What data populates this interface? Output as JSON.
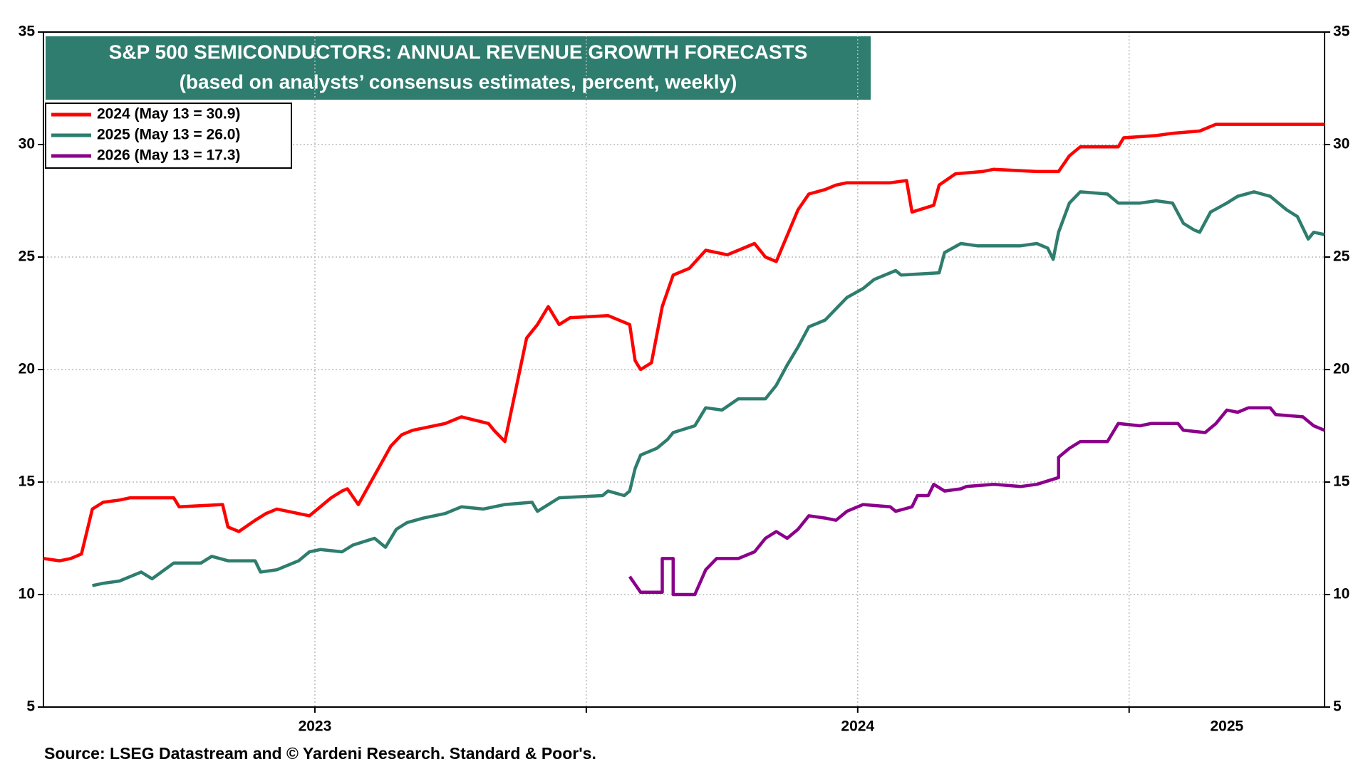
{
  "chart_data": {
    "type": "line",
    "title": "S&P 500 SEMICONDUCTORS: ANNUAL REVENUE GROWTH FORECASTS",
    "subtitle": "(based on analysts’ consensus estimates, percent, weekly)",
    "source": "Source: LSEG Datastream and © Yardeni Research. Standard & Poor's.",
    "xlim": [
      2023.0,
      2025.36
    ],
    "xticks": [
      {
        "value": 2023.5,
        "label": "2023"
      },
      {
        "value": 2024.5,
        "label": "2024"
      },
      {
        "value": 2025.18,
        "label": "2025"
      }
    ],
    "xgrid": [
      2023.5,
      2024,
      2024.5,
      2025
    ],
    "ylim": [
      5,
      35
    ],
    "yticks": [
      5,
      10,
      15,
      20,
      25,
      30,
      35
    ],
    "y2lim": [
      5,
      35
    ],
    "y2ticks": [
      5,
      10,
      15,
      20,
      25,
      30,
      35
    ],
    "grid": true,
    "legend": "upper left",
    "series": [
      {
        "name": "2024 (May 13 = 30.9)",
        "color": "#ff0000",
        "x": [
          2023.0,
          2023.03,
          2023.05,
          2023.07,
          2023.09,
          2023.11,
          2023.14,
          2023.16,
          2023.24,
          2023.25,
          2023.33,
          2023.34,
          2023.36,
          2023.39,
          2023.41,
          2023.43,
          2023.49,
          2023.53,
          2023.55,
          2023.56,
          2023.58,
          2023.64,
          2023.66,
          2023.68,
          2023.74,
          2023.77,
          2023.82,
          2023.83,
          2023.85,
          2023.89,
          2023.91,
          2023.93,
          2023.95,
          2023.97,
          2024.04,
          2024.08,
          2024.09,
          2024.1,
          2024.12,
          2024.14,
          2024.16,
          2024.19,
          2024.22,
          2024.26,
          2024.28,
          2024.31,
          2024.33,
          2024.35,
          2024.39,
          2024.41,
          2024.44,
          2024.46,
          2024.48,
          2024.56,
          2024.59,
          2024.6,
          2024.64,
          2024.65,
          2024.68,
          2024.73,
          2024.75,
          2024.83,
          2024.87,
          2024.89,
          2024.91,
          2024.98,
          2024.99,
          2025.05,
          2025.08,
          2025.13,
          2025.16,
          2025.36
        ],
        "values": [
          11.6,
          11.5,
          11.6,
          11.8,
          13.8,
          14.1,
          14.2,
          14.3,
          14.3,
          13.9,
          14.0,
          13.0,
          12.8,
          13.3,
          13.6,
          13.8,
          13.5,
          14.3,
          14.6,
          14.7,
          14.0,
          16.6,
          17.1,
          17.3,
          17.6,
          17.9,
          17.6,
          17.3,
          16.8,
          21.4,
          22.0,
          22.8,
          22.0,
          22.3,
          22.4,
          22.0,
          20.4,
          20.0,
          20.3,
          22.8,
          24.2,
          24.5,
          25.3,
          25.1,
          25.3,
          25.6,
          25.0,
          24.8,
          27.1,
          27.8,
          28.0,
          28.2,
          28.3,
          28.3,
          28.4,
          27.0,
          27.3,
          28.2,
          28.7,
          28.8,
          28.9,
          28.8,
          28.8,
          29.5,
          29.9,
          29.9,
          30.3,
          30.4,
          30.5,
          30.6,
          30.9,
          30.9
        ]
      },
      {
        "name": "2025 (May 13 = 26.0)",
        "color": "#2e7d6e",
        "x": [
          2023.09,
          2023.11,
          2023.14,
          2023.16,
          2023.18,
          2023.2,
          2023.24,
          2023.29,
          2023.31,
          2023.34,
          2023.39,
          2023.4,
          2023.43,
          2023.47,
          2023.49,
          2023.51,
          2023.55,
          2023.57,
          2023.61,
          2023.63,
          2023.65,
          2023.67,
          2023.7,
          2023.74,
          2023.77,
          2023.81,
          2023.85,
          2023.9,
          2023.91,
          2023.95,
          2024.03,
          2024.04,
          2024.07,
          2024.08,
          2024.09,
          2024.1,
          2024.13,
          2024.15,
          2024.16,
          2024.2,
          2024.22,
          2024.25,
          2024.28,
          2024.33,
          2024.35,
          2024.37,
          2024.39,
          2024.41,
          2024.44,
          2024.46,
          2024.48,
          2024.51,
          2024.53,
          2024.57,
          2024.58,
          2024.65,
          2024.66,
          2024.69,
          2024.72,
          2024.8,
          2024.83,
          2024.85,
          2024.86,
          2024.87,
          2024.89,
          2024.91,
          2024.96,
          2024.98,
          2025.02,
          2025.05,
          2025.08,
          2025.1,
          2025.12,
          2025.13,
          2025.15,
          2025.18,
          2025.2,
          2025.23,
          2025.26,
          2025.29,
          2025.31,
          2025.33,
          2025.34,
          2025.36
        ],
        "values": [
          10.4,
          10.5,
          10.6,
          10.8,
          11.0,
          10.7,
          11.4,
          11.4,
          11.7,
          11.5,
          11.5,
          11.0,
          11.1,
          11.5,
          11.9,
          12.0,
          11.9,
          12.2,
          12.5,
          12.1,
          12.9,
          13.2,
          13.4,
          13.6,
          13.9,
          13.8,
          14.0,
          14.1,
          13.7,
          14.3,
          14.4,
          14.6,
          14.4,
          14.6,
          15.6,
          16.2,
          16.5,
          16.9,
          17.2,
          17.5,
          18.3,
          18.2,
          18.7,
          18.7,
          19.3,
          20.2,
          21.0,
          21.9,
          22.2,
          22.7,
          23.2,
          23.6,
          24.0,
          24.4,
          24.2,
          24.3,
          25.2,
          25.6,
          25.5,
          25.5,
          25.6,
          25.4,
          24.9,
          26.1,
          27.4,
          27.9,
          27.8,
          27.4,
          27.4,
          27.5,
          27.4,
          26.5,
          26.2,
          26.1,
          27.0,
          27.4,
          27.7,
          27.9,
          27.7,
          27.1,
          26.8,
          25.8,
          26.1,
          26.0
        ]
      },
      {
        "name": "2026 (May 13 = 17.3)",
        "color": "#8b008b",
        "x": [
          2024.08,
          2024.1,
          2024.14,
          2024.14,
          2024.16,
          2024.16,
          2024.2,
          2024.22,
          2024.24,
          2024.28,
          2024.31,
          2024.33,
          2024.35,
          2024.37,
          2024.39,
          2024.41,
          2024.44,
          2024.46,
          2024.48,
          2024.51,
          2024.56,
          2024.57,
          2024.6,
          2024.61,
          2024.63,
          2024.64,
          2024.66,
          2024.69,
          2024.7,
          2024.75,
          2024.8,
          2024.83,
          2024.87,
          2024.87,
          2024.89,
          2024.91,
          2024.96,
          2024.98,
          2025.02,
          2025.04,
          2025.09,
          2025.1,
          2025.14,
          2025.16,
          2025.18,
          2025.2,
          2025.22,
          2025.26,
          2025.27,
          2025.32,
          2025.34,
          2025.36
        ],
        "values": [
          10.8,
          10.1,
          10.1,
          11.6,
          11.6,
          10.0,
          10.0,
          11.1,
          11.6,
          11.6,
          11.9,
          12.5,
          12.8,
          12.5,
          12.9,
          13.5,
          13.4,
          13.3,
          13.7,
          14.0,
          13.9,
          13.7,
          13.9,
          14.4,
          14.4,
          14.9,
          14.6,
          14.7,
          14.8,
          14.9,
          14.8,
          14.9,
          15.2,
          16.1,
          16.5,
          16.8,
          16.8,
          17.6,
          17.5,
          17.6,
          17.6,
          17.3,
          17.2,
          17.6,
          18.2,
          18.1,
          18.3,
          18.3,
          18.0,
          17.9,
          17.5,
          17.3
        ]
      }
    ]
  }
}
